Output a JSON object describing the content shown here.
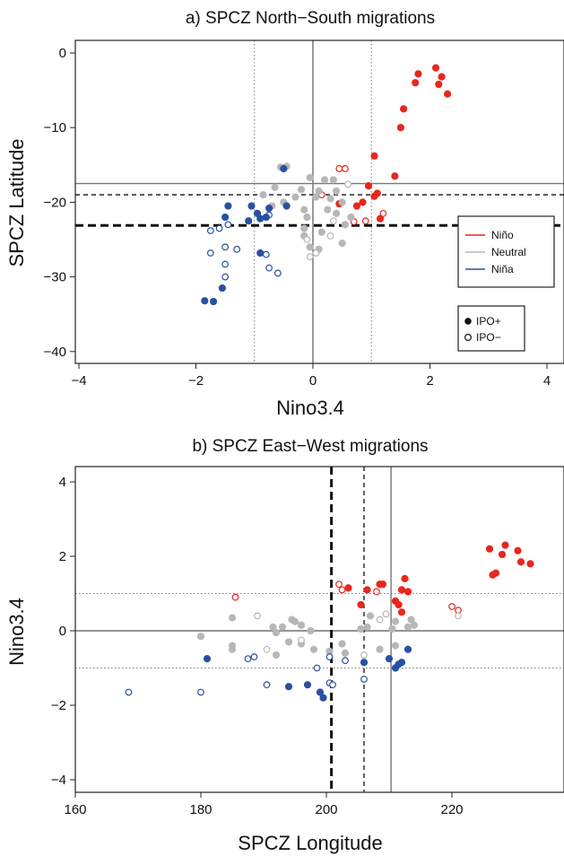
{
  "chart_data": [
    {
      "type": "scatter",
      "title": "a) SPCZ North−South migrations",
      "xlabel": "Nino3.4",
      "ylabel": "SPCZ Latitude",
      "xlim": [
        -4,
        4.3
      ],
      "ylim": [
        -41,
        1.5
      ],
      "xticks": [
        -4,
        -2,
        0,
        2,
        4
      ],
      "yticks": [
        0,
        -10,
        -20,
        -30,
        -40
      ],
      "xtick_labels": [
        "−4",
        "−2",
        "0",
        "2",
        "4"
      ],
      "ytick_labels": [
        "0",
        "−10",
        "−20",
        "−30",
        "−40"
      ],
      "ref_lines": {
        "vertical_solid": [
          0
        ],
        "vertical_dotted": [
          -1,
          1
        ],
        "horizontal_solid_gray": -17.5,
        "horizontal_dashed": -19,
        "horizontal_thick_dashed": -23.1
      },
      "legend_enso": [
        {
          "label": "Niño",
          "color": "#e8271d"
        },
        {
          "label": "Neutral",
          "color": "#b7b7b7"
        },
        {
          "label": "Niña",
          "color": "#2a50a3"
        }
      ],
      "legend_ipo": [
        {
          "label": "IPO+",
          "filled": true
        },
        {
          "label": "IPO−",
          "filled": false
        }
      ],
      "legend_placement": "right",
      "points": [
        {
          "x": 2.1,
          "y": -2.0,
          "c": "nino",
          "f": 1
        },
        {
          "x": 1.8,
          "y": -2.8,
          "c": "nino",
          "f": 1
        },
        {
          "x": 2.2,
          "y": -3.2,
          "c": "nino",
          "f": 1
        },
        {
          "x": 1.75,
          "y": -4.0,
          "c": "nino",
          "f": 1
        },
        {
          "x": 2.15,
          "y": -4.2,
          "c": "nino",
          "f": 1
        },
        {
          "x": 2.3,
          "y": -5.5,
          "c": "nino",
          "f": 1
        },
        {
          "x": 1.55,
          "y": -7.5,
          "c": "nino",
          "f": 1
        },
        {
          "x": 1.5,
          "y": -10.0,
          "c": "nino",
          "f": 1
        },
        {
          "x": 1.05,
          "y": -13.8,
          "c": "nino",
          "f": 1
        },
        {
          "x": 1.4,
          "y": -16.5,
          "c": "nino",
          "f": 1
        },
        {
          "x": 0.45,
          "y": -15.5,
          "c": "nino",
          "f": 0
        },
        {
          "x": 0.55,
          "y": -15.5,
          "c": "nino",
          "f": 0
        },
        {
          "x": 0.95,
          "y": -17.8,
          "c": "nino",
          "f": 1
        },
        {
          "x": 1.1,
          "y": -18.8,
          "c": "nino",
          "f": 1
        },
        {
          "x": 1.05,
          "y": -19.2,
          "c": "nino",
          "f": 1
        },
        {
          "x": 0.15,
          "y": -19.0,
          "c": "nino",
          "f": 0
        },
        {
          "x": 0.85,
          "y": -20.0,
          "c": "nino",
          "f": 1
        },
        {
          "x": 0.75,
          "y": -20.5,
          "c": "nino",
          "f": 1
        },
        {
          "x": 0.45,
          "y": -20.2,
          "c": "nino",
          "f": 1
        },
        {
          "x": 1.2,
          "y": -21.5,
          "c": "nino",
          "f": 0
        },
        {
          "x": 1.15,
          "y": -22.2,
          "c": "nino",
          "f": 1
        },
        {
          "x": 0.9,
          "y": -22.5,
          "c": "nino",
          "f": 0
        },
        {
          "x": 0.7,
          "y": -22.6,
          "c": "nino",
          "f": 0
        },
        {
          "x": -0.55,
          "y": -15.3,
          "c": "neutral",
          "f": 1
        },
        {
          "x": -0.45,
          "y": -15.2,
          "c": "neutral",
          "f": 1
        },
        {
          "x": -0.05,
          "y": -16.7,
          "c": "neutral",
          "f": 1
        },
        {
          "x": 0.2,
          "y": -17.0,
          "c": "neutral",
          "f": 1
        },
        {
          "x": 0.35,
          "y": -17.0,
          "c": "neutral",
          "f": 1
        },
        {
          "x": 0.6,
          "y": -17.6,
          "c": "neutral",
          "f": 0
        },
        {
          "x": -0.65,
          "y": -18.0,
          "c": "neutral",
          "f": 1
        },
        {
          "x": -0.2,
          "y": -18.3,
          "c": "neutral",
          "f": 1
        },
        {
          "x": 0.1,
          "y": -18.5,
          "c": "neutral",
          "f": 1
        },
        {
          "x": 0.4,
          "y": -18.5,
          "c": "neutral",
          "f": 1
        },
        {
          "x": -0.85,
          "y": -19.0,
          "c": "neutral",
          "f": 1
        },
        {
          "x": -0.3,
          "y": -19.3,
          "c": "neutral",
          "f": 1
        },
        {
          "x": 0.05,
          "y": -19.3,
          "c": "neutral",
          "f": 1
        },
        {
          "x": 0.3,
          "y": -19.5,
          "c": "neutral",
          "f": 1
        },
        {
          "x": -0.5,
          "y": -20.0,
          "c": "neutral",
          "f": 1
        },
        {
          "x": 0.5,
          "y": -20.0,
          "c": "neutral",
          "f": 1
        },
        {
          "x": -0.7,
          "y": -20.5,
          "c": "neutral",
          "f": 1
        },
        {
          "x": 0.25,
          "y": -21.0,
          "c": "neutral",
          "f": 1
        },
        {
          "x": -0.15,
          "y": -21.0,
          "c": "neutral",
          "f": 1
        },
        {
          "x": 0.4,
          "y": -21.5,
          "c": "neutral",
          "f": 1
        },
        {
          "x": -0.1,
          "y": -22.0,
          "c": "neutral",
          "f": 1
        },
        {
          "x": 0.65,
          "y": -22.0,
          "c": "neutral",
          "f": 1
        },
        {
          "x": 0.35,
          "y": -22.5,
          "c": "neutral",
          "f": 0
        },
        {
          "x": 0.55,
          "y": -23.0,
          "c": "neutral",
          "f": 1
        },
        {
          "x": 0.15,
          "y": -24.0,
          "c": "neutral",
          "f": 1
        },
        {
          "x": -0.15,
          "y": -24.5,
          "c": "neutral",
          "f": 1
        },
        {
          "x": 0.3,
          "y": -24.5,
          "c": "neutral",
          "f": 0
        },
        {
          "x": -0.1,
          "y": -25.0,
          "c": "neutral",
          "f": 0
        },
        {
          "x": 0.5,
          "y": -25.5,
          "c": "neutral",
          "f": 1
        },
        {
          "x": 0.1,
          "y": -26.3,
          "c": "neutral",
          "f": 1
        },
        {
          "x": 0.05,
          "y": -26.8,
          "c": "neutral",
          "f": 0
        },
        {
          "x": -0.05,
          "y": -27.3,
          "c": "neutral",
          "f": 0
        },
        {
          "x": -0.05,
          "y": -26.0,
          "c": "neutral",
          "f": 1
        },
        {
          "x": -0.15,
          "y": -23.5,
          "c": "neutral",
          "f": 1
        },
        {
          "x": -0.5,
          "y": -15.5,
          "c": "nina",
          "f": 1
        },
        {
          "x": -1.45,
          "y": -20.5,
          "c": "nina",
          "f": 1
        },
        {
          "x": -1.05,
          "y": -20.5,
          "c": "nina",
          "f": 1
        },
        {
          "x": -0.75,
          "y": -20.8,
          "c": "nina",
          "f": 1
        },
        {
          "x": -0.45,
          "y": -20.5,
          "c": "nina",
          "f": 1
        },
        {
          "x": -0.95,
          "y": -21.5,
          "c": "nina",
          "f": 1
        },
        {
          "x": -0.75,
          "y": -21.7,
          "c": "nina",
          "f": 0
        },
        {
          "x": -0.8,
          "y": -22.0,
          "c": "nina",
          "f": 1
        },
        {
          "x": -0.9,
          "y": -22.2,
          "c": "nina",
          "f": 1
        },
        {
          "x": -1.5,
          "y": -22.0,
          "c": "nina",
          "f": 1
        },
        {
          "x": -1.1,
          "y": -22.5,
          "c": "nina",
          "f": 1
        },
        {
          "x": -1.45,
          "y": -23.0,
          "c": "nina",
          "f": 0
        },
        {
          "x": -1.6,
          "y": -23.5,
          "c": "nina",
          "f": 0
        },
        {
          "x": -1.75,
          "y": -23.8,
          "c": "nina",
          "f": 0
        },
        {
          "x": -1.5,
          "y": -26.0,
          "c": "nina",
          "f": 0
        },
        {
          "x": -1.3,
          "y": -26.3,
          "c": "nina",
          "f": 0
        },
        {
          "x": -1.75,
          "y": -26.8,
          "c": "nina",
          "f": 0
        },
        {
          "x": -0.9,
          "y": -26.8,
          "c": "nina",
          "f": 1
        },
        {
          "x": -0.8,
          "y": -27.0,
          "c": "nina",
          "f": 0
        },
        {
          "x": -1.5,
          "y": -28.3,
          "c": "nina",
          "f": 0
        },
        {
          "x": -0.75,
          "y": -28.8,
          "c": "nina",
          "f": 0
        },
        {
          "x": -0.6,
          "y": -29.5,
          "c": "nina",
          "f": 0
        },
        {
          "x": -1.5,
          "y": -30.0,
          "c": "nina",
          "f": 0
        },
        {
          "x": -1.55,
          "y": -31.5,
          "c": "nina",
          "f": 1
        },
        {
          "x": -1.85,
          "y": -33.2,
          "c": "nina",
          "f": 1
        },
        {
          "x": -1.7,
          "y": -33.3,
          "c": "nina",
          "f": 1
        }
      ]
    },
    {
      "type": "scatter",
      "title": "b) SPCZ East−West migrations",
      "xlabel": "SPCZ Longitude",
      "ylabel": "Nino3.4",
      "xlim": [
        160,
        242
      ],
      "ylim": [
        -4.3,
        4.3
      ],
      "xticks": [
        160,
        180,
        200,
        220,
        240
      ],
      "yticks": [
        4,
        2,
        0,
        -2,
        -4
      ],
      "xtick_labels": [
        "160",
        "180",
        "200",
        "220",
        "240"
      ],
      "ytick_labels": [
        "4",
        "2",
        "0",
        "−2",
        "−4"
      ],
      "ref_lines": {
        "horizontal_solid": [
          0
        ],
        "horizontal_dotted": [
          -1,
          1
        ],
        "vertical_solid_gray": 210.3,
        "vertical_dashed": 206.0,
        "vertical_thick_dashed": 200.8
      },
      "points": [
        {
          "x": 228.5,
          "y": 2.3,
          "c": "nino",
          "f": 1
        },
        {
          "x": 226.0,
          "y": 2.2,
          "c": "nino",
          "f": 1
        },
        {
          "x": 230.5,
          "y": 2.15,
          "c": "nino",
          "f": 1
        },
        {
          "x": 228.0,
          "y": 2.05,
          "c": "nino",
          "f": 1
        },
        {
          "x": 231.0,
          "y": 1.85,
          "c": "nino",
          "f": 1
        },
        {
          "x": 232.5,
          "y": 1.8,
          "c": "nino",
          "f": 1
        },
        {
          "x": 227.0,
          "y": 1.55,
          "c": "nino",
          "f": 1
        },
        {
          "x": 226.5,
          "y": 1.5,
          "c": "nino",
          "f": 1
        },
        {
          "x": 212.5,
          "y": 1.4,
          "c": "nino",
          "f": 1
        },
        {
          "x": 202.0,
          "y": 1.25,
          "c": "nino",
          "f": 0
        },
        {
          "x": 208.5,
          "y": 1.25,
          "c": "nino",
          "f": 1
        },
        {
          "x": 209.0,
          "y": 1.25,
          "c": "nino",
          "f": 1
        },
        {
          "x": 203.5,
          "y": 1.15,
          "c": "nino",
          "f": 1
        },
        {
          "x": 206.5,
          "y": 1.1,
          "c": "nino",
          "f": 1
        },
        {
          "x": 202.5,
          "y": 1.1,
          "c": "nino",
          "f": 0
        },
        {
          "x": 212.0,
          "y": 1.1,
          "c": "nino",
          "f": 1
        },
        {
          "x": 213.0,
          "y": 1.05,
          "c": "nino",
          "f": 1
        },
        {
          "x": 208.0,
          "y": 1.05,
          "c": "nino",
          "f": 0
        },
        {
          "x": 185.5,
          "y": 0.9,
          "c": "nino",
          "f": 0
        },
        {
          "x": 211.0,
          "y": 0.8,
          "c": "nino",
          "f": 1
        },
        {
          "x": 205.5,
          "y": 0.7,
          "c": "nino",
          "f": 1
        },
        {
          "x": 211.5,
          "y": 0.7,
          "c": "nino",
          "f": 1
        },
        {
          "x": 220.0,
          "y": 0.65,
          "c": "nino",
          "f": 0
        },
        {
          "x": 221.0,
          "y": 0.55,
          "c": "nino",
          "f": 0
        },
        {
          "x": 212.0,
          "y": 0.5,
          "c": "nino",
          "f": 1
        },
        {
          "x": 185.0,
          "y": 0.35,
          "c": "neutral",
          "f": 1
        },
        {
          "x": 194.5,
          "y": 0.3,
          "c": "neutral",
          "f": 1
        },
        {
          "x": 195.0,
          "y": 0.25,
          "c": "neutral",
          "f": 1
        },
        {
          "x": 189.0,
          "y": 0.4,
          "c": "neutral",
          "f": 0
        },
        {
          "x": 213.5,
          "y": 0.3,
          "c": "neutral",
          "f": 1
        },
        {
          "x": 214.0,
          "y": 0.15,
          "c": "neutral",
          "f": 1
        },
        {
          "x": 207.0,
          "y": 0.4,
          "c": "neutral",
          "f": 1
        },
        {
          "x": 209.5,
          "y": 0.45,
          "c": "neutral",
          "f": 0
        },
        {
          "x": 221.0,
          "y": 0.4,
          "c": "neutral",
          "f": 0
        },
        {
          "x": 208.5,
          "y": 0.3,
          "c": "neutral",
          "f": 0
        },
        {
          "x": 211.0,
          "y": 0.25,
          "c": "neutral",
          "f": 1
        },
        {
          "x": 213.0,
          "y": 0.1,
          "c": "neutral",
          "f": 1
        },
        {
          "x": 210.5,
          "y": 0.05,
          "c": "neutral",
          "f": 1
        },
        {
          "x": 191.5,
          "y": 0.1,
          "c": "neutral",
          "f": 1
        },
        {
          "x": 193.0,
          "y": 0.1,
          "c": "neutral",
          "f": 1
        },
        {
          "x": 196.0,
          "y": 0.15,
          "c": "neutral",
          "f": 1
        },
        {
          "x": 197.5,
          "y": 0.0,
          "c": "neutral",
          "f": 1
        },
        {
          "x": 192.0,
          "y": -0.05,
          "c": "neutral",
          "f": 1
        },
        {
          "x": 205.5,
          "y": 0.05,
          "c": "neutral",
          "f": 1
        },
        {
          "x": 206.5,
          "y": 0.1,
          "c": "neutral",
          "f": 1
        },
        {
          "x": 180.0,
          "y": -0.15,
          "c": "neutral",
          "f": 1
        },
        {
          "x": 185.0,
          "y": -0.4,
          "c": "neutral",
          "f": 1
        },
        {
          "x": 185.0,
          "y": -0.5,
          "c": "neutral",
          "f": 1
        },
        {
          "x": 194.0,
          "y": -0.3,
          "c": "neutral",
          "f": 1
        },
        {
          "x": 196.0,
          "y": -0.35,
          "c": "neutral",
          "f": 1
        },
        {
          "x": 198.0,
          "y": -0.5,
          "c": "neutral",
          "f": 1
        },
        {
          "x": 190.5,
          "y": -0.5,
          "c": "neutral",
          "f": 0
        },
        {
          "x": 192.0,
          "y": -0.65,
          "c": "neutral",
          "f": 1
        },
        {
          "x": 208.5,
          "y": -0.5,
          "c": "neutral",
          "f": 1
        },
        {
          "x": 211.0,
          "y": -0.4,
          "c": "neutral",
          "f": 1
        },
        {
          "x": 200.5,
          "y": -0.55,
          "c": "neutral",
          "f": 1
        },
        {
          "x": 203.0,
          "y": -0.6,
          "c": "neutral",
          "f": 1
        },
        {
          "x": 202.5,
          "y": -0.35,
          "c": "neutral",
          "f": 1
        },
        {
          "x": 206.0,
          "y": -0.65,
          "c": "neutral",
          "f": 0
        },
        {
          "x": 196.0,
          "y": -0.25,
          "c": "neutral",
          "f": 0
        },
        {
          "x": 213.0,
          "y": -0.5,
          "c": "nina",
          "f": 1
        },
        {
          "x": 181.0,
          "y": -0.75,
          "c": "nina",
          "f": 1
        },
        {
          "x": 188.5,
          "y": -0.7,
          "c": "nina",
          "f": 0
        },
        {
          "x": 187.5,
          "y": -0.75,
          "c": "nina",
          "f": 0
        },
        {
          "x": 200.5,
          "y": -0.7,
          "c": "nina",
          "f": 0
        },
        {
          "x": 203.0,
          "y": -0.8,
          "c": "nina",
          "f": 0
        },
        {
          "x": 210.0,
          "y": -0.75,
          "c": "nina",
          "f": 1
        },
        {
          "x": 206.0,
          "y": -0.85,
          "c": "nina",
          "f": 1
        },
        {
          "x": 211.5,
          "y": -0.9,
          "c": "nina",
          "f": 1
        },
        {
          "x": 212.0,
          "y": -0.85,
          "c": "nina",
          "f": 1
        },
        {
          "x": 211.0,
          "y": -1.0,
          "c": "nina",
          "f": 1
        },
        {
          "x": 198.5,
          "y": -1.0,
          "c": "nina",
          "f": 0
        },
        {
          "x": 190.5,
          "y": -1.45,
          "c": "nina",
          "f": 0
        },
        {
          "x": 194.0,
          "y": -1.5,
          "c": "nina",
          "f": 1
        },
        {
          "x": 197.0,
          "y": -1.45,
          "c": "nina",
          "f": 1
        },
        {
          "x": 200.5,
          "y": -1.4,
          "c": "nina",
          "f": 0
        },
        {
          "x": 201.0,
          "y": -1.45,
          "c": "nina",
          "f": 0
        },
        {
          "x": 199.0,
          "y": -1.65,
          "c": "nina",
          "f": 1
        },
        {
          "x": 199.5,
          "y": -1.8,
          "c": "nina",
          "f": 1
        },
        {
          "x": 168.5,
          "y": -1.65,
          "c": "nina",
          "f": 0
        },
        {
          "x": 180.0,
          "y": -1.65,
          "c": "nina",
          "f": 0
        },
        {
          "x": 206.0,
          "y": -1.3,
          "c": "nina",
          "f": 0
        }
      ]
    }
  ],
  "colors": {
    "nino": "#e8271d",
    "neutral": "#b7b7b7",
    "nina": "#2a50a3"
  }
}
